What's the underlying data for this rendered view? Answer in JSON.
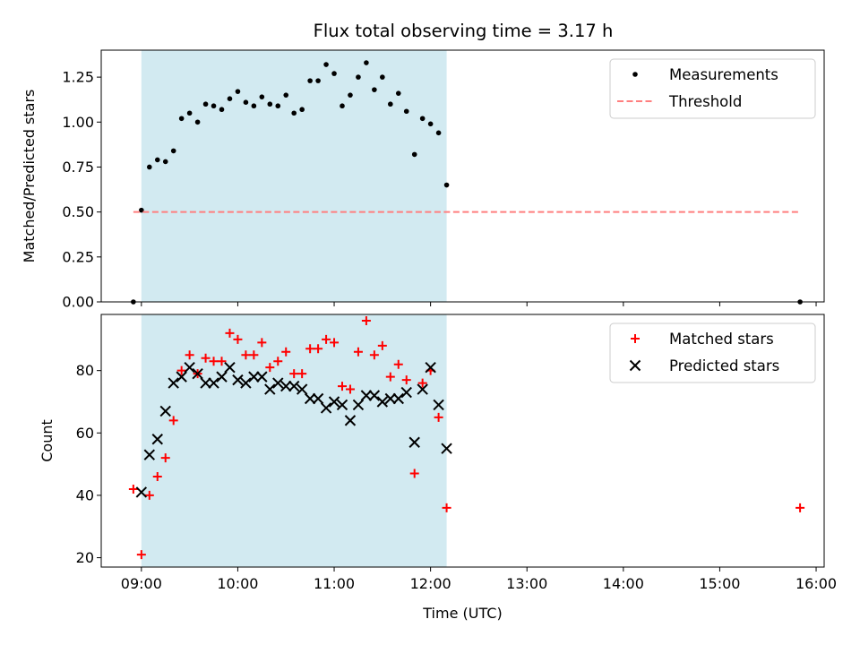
{
  "chart_data": [
    {
      "type": "scatter",
      "title": "Flux total observing time = 3.17 h",
      "xlabel": "",
      "ylabel": "Matched/Predicted stars",
      "xlim": [
        "08:35",
        "16:05"
      ],
      "ylim": [
        0,
        1.4
      ],
      "yticks": [
        0.0,
        0.25,
        0.5,
        0.75,
        1.0,
        1.25
      ],
      "ytick_labels": [
        "0.00",
        "0.25",
        "0.50",
        "0.75",
        "1.00",
        "1.25"
      ],
      "xticks": [
        "09:00",
        "10:00",
        "11:00",
        "12:00",
        "13:00",
        "14:00",
        "15:00",
        "16:00"
      ],
      "shaded_region": {
        "x": [
          "09:00",
          "12:10"
        ],
        "color": "#add8e6"
      },
      "legend_position": "top-right",
      "series": [
        {
          "name": "Measurements",
          "marker": "dot",
          "color": "#000000",
          "x": [
            "08:55",
            "09:00",
            "09:05",
            "09:10",
            "09:15",
            "09:20",
            "09:25",
            "09:30",
            "09:35",
            "09:40",
            "09:45",
            "09:50",
            "09:55",
            "10:00",
            "10:05",
            "10:10",
            "10:15",
            "10:20",
            "10:25",
            "10:30",
            "10:35",
            "10:40",
            "10:45",
            "10:50",
            "10:55",
            "11:00",
            "11:05",
            "11:10",
            "11:15",
            "11:20",
            "11:25",
            "11:30",
            "11:35",
            "11:40",
            "11:45",
            "11:50",
            "11:55",
            "12:00",
            "12:05",
            "12:10",
            "15:50"
          ],
          "y": [
            0.0,
            0.51,
            0.75,
            0.79,
            0.78,
            0.84,
            1.02,
            1.05,
            1.0,
            1.1,
            1.09,
            1.07,
            1.13,
            1.17,
            1.11,
            1.09,
            1.14,
            1.1,
            1.09,
            1.15,
            1.05,
            1.07,
            1.23,
            1.23,
            1.32,
            1.27,
            1.09,
            1.15,
            1.25,
            1.33,
            1.18,
            1.25,
            1.1,
            1.16,
            1.06,
            0.82,
            1.02,
            0.99,
            0.94,
            0.65,
            0.0
          ]
        },
        {
          "name": "Threshold",
          "line": "dashed",
          "color": "#ff7f7f",
          "x": [
            "08:55",
            "15:50"
          ],
          "y": [
            0.5,
            0.5
          ]
        }
      ]
    },
    {
      "type": "scatter",
      "title": "",
      "xlabel": "Time (UTC)",
      "ylabel": "Count",
      "xlim": [
        "08:35",
        "16:05"
      ],
      "ylim": [
        17,
        98
      ],
      "yticks": [
        20,
        40,
        60,
        80
      ],
      "ytick_labels": [
        "20",
        "40",
        "60",
        "80"
      ],
      "xticks": [
        "09:00",
        "10:00",
        "11:00",
        "12:00",
        "13:00",
        "14:00",
        "15:00",
        "16:00"
      ],
      "xtick_labels": [
        "09:00",
        "10:00",
        "11:00",
        "12:00",
        "13:00",
        "14:00",
        "15:00",
        "16:00"
      ],
      "shaded_region": {
        "x": [
          "09:00",
          "12:10"
        ],
        "color": "#add8e6"
      },
      "legend_position": "top-right",
      "series": [
        {
          "name": "Matched stars",
          "marker": "plus",
          "color": "#ff0000",
          "x": [
            "08:55",
            "09:00",
            "09:05",
            "09:10",
            "09:15",
            "09:20",
            "09:25",
            "09:30",
            "09:35",
            "09:40",
            "09:45",
            "09:50",
            "09:55",
            "10:00",
            "10:05",
            "10:10",
            "10:15",
            "10:20",
            "10:25",
            "10:30",
            "10:35",
            "10:40",
            "10:45",
            "10:50",
            "10:55",
            "11:00",
            "11:05",
            "11:10",
            "11:15",
            "11:20",
            "11:25",
            "11:30",
            "11:35",
            "11:40",
            "11:45",
            "11:50",
            "11:55",
            "12:00",
            "12:05",
            "12:10",
            "15:50"
          ],
          "y": [
            42,
            21,
            40,
            46,
            52,
            64,
            80,
            85,
            79,
            84,
            83,
            83,
            92,
            90,
            85,
            85,
            89,
            81,
            83,
            86,
            79,
            79,
            87,
            87,
            90,
            89,
            75,
            74,
            86,
            96,
            85,
            88,
            78,
            82,
            77,
            47,
            76,
            80,
            65,
            36,
            36
          ]
        },
        {
          "name": "Predicted stars",
          "marker": "x",
          "color": "#000000",
          "x": [
            "09:00",
            "09:05",
            "09:10",
            "09:15",
            "09:20",
            "09:25",
            "09:30",
            "09:35",
            "09:40",
            "09:45",
            "09:50",
            "09:55",
            "10:00",
            "10:05",
            "10:10",
            "10:15",
            "10:20",
            "10:25",
            "10:30",
            "10:35",
            "10:40",
            "10:45",
            "10:50",
            "10:55",
            "11:00",
            "11:05",
            "11:10",
            "11:15",
            "11:20",
            "11:25",
            "11:30",
            "11:35",
            "11:40",
            "11:45",
            "11:50",
            "11:55",
            "12:00",
            "12:05",
            "12:10"
          ],
          "y": [
            41,
            53,
            58,
            67,
            76,
            78,
            81,
            79,
            76,
            76,
            78,
            81,
            77,
            76,
            78,
            78,
            74,
            76,
            75,
            75,
            74,
            71,
            71,
            68,
            70,
            69,
            64,
            69,
            72,
            72,
            70,
            71,
            71,
            73,
            57,
            74,
            81,
            69,
            55
          ]
        }
      ]
    }
  ]
}
